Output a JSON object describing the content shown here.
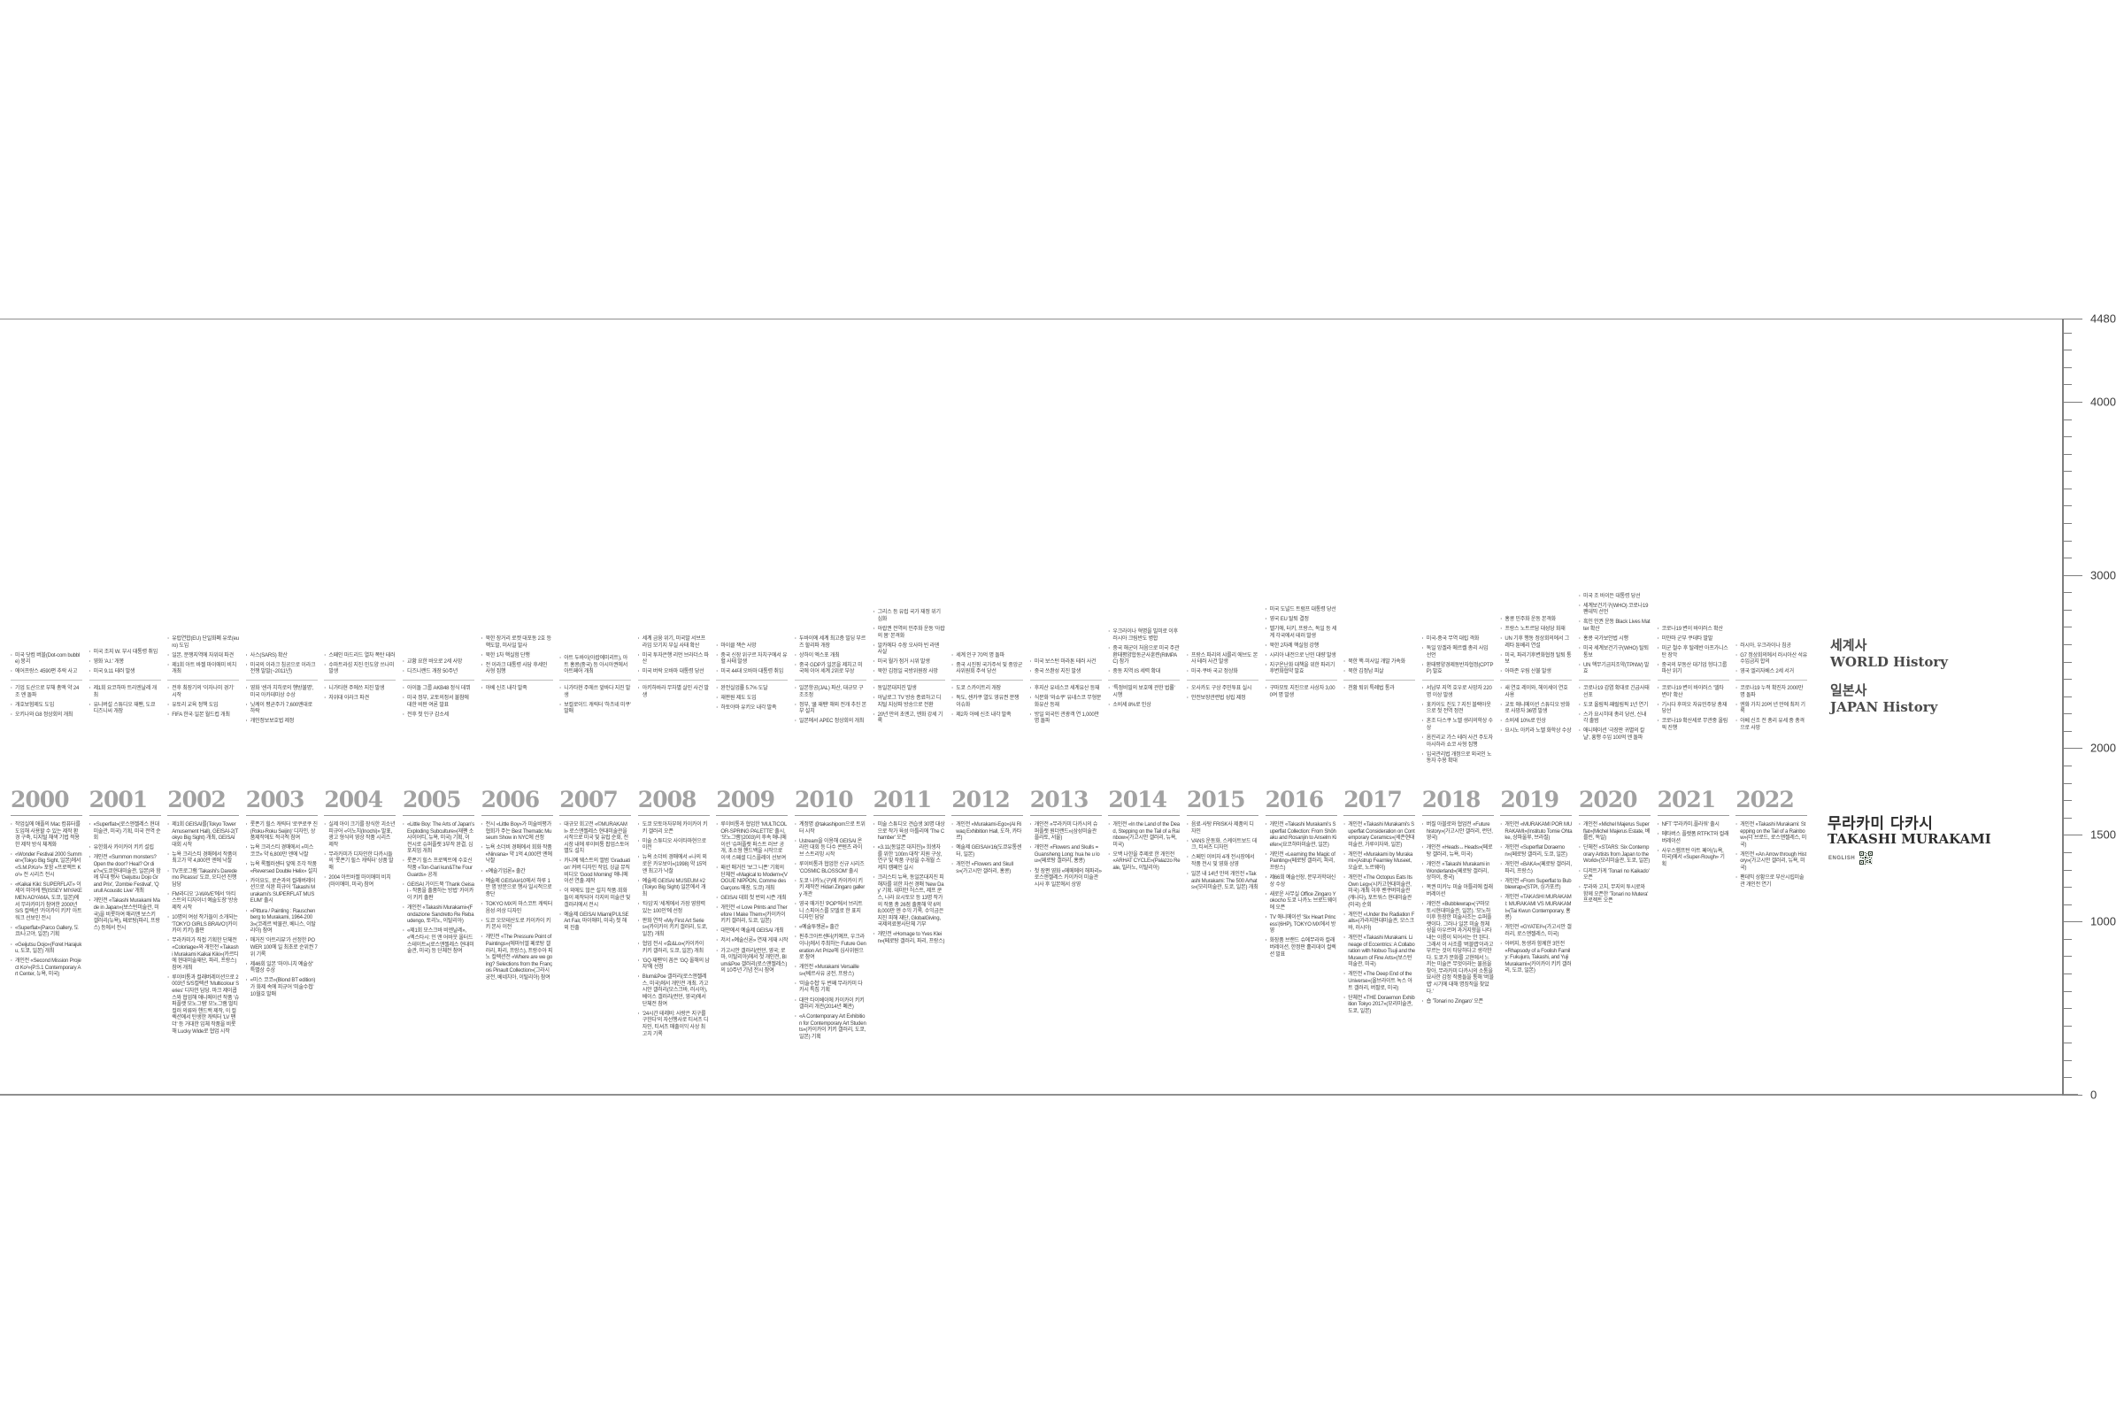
{
  "colors": {
    "background": "#ffffff",
    "text": "#3e3e3e",
    "year_gray": "#a2a2a2",
    "rule_gray": "#bdbdbd",
    "ruler_gray": "#7d7d7d"
  },
  "labels": {
    "world_ko": "세계사",
    "world_en": "WORLD History",
    "japan_ko": "일본사",
    "japan_en": "JAPAN History",
    "title_ko": "무라카미 다카시",
    "title_en": "TAKASHI MURAKAMI",
    "qr_label": "ENGLISH",
    "qr_icon": "qr-code"
  },
  "ruler": {
    "max": 4480,
    "minor_step": 100,
    "labeled_values": [
      4480,
      4000,
      3000,
      2000,
      1500,
      1000,
      0
    ],
    "labels": [
      "4480",
      "4000",
      "3000",
      "2000",
      "1500",
      "1000",
      "0"
    ]
  },
  "years": [
    {
      "year": "2000",
      "world": [
        "미국 닷컴 버블(Dot-com bubble) 붕괴",
        "에어프랑스 4590편 추락 사고"
      ],
      "japan": [
        "기업 도산으로 부채 총액 약 24조 엔 돌파",
        "개호보험제도 도입",
        "오키나와 G8 정상회의 개최"
      ],
      "murakami": [
        "작업실에 애플의 Mac 컴퓨터를 도입해 사용할 수 있는 제작 환경 구축, 디지털 채색 기법 적용한 제작 방식 체계화",
        "«Wonder Festival 2000 Summer»(Tokyo Big Sight, 일본)에서 «S.M.P.Ko²» 포함 «프로젝트 Ko²» 전 시리즈 전시",
        "«Kaikai Kiki: SUPERFLAT» 이세이 미야케 맨(ISSEY MIYAKE MEN AOYAMA, 도쿄, 일본)에서 무라카미가 참여한 2000년 S/S 컬렉션 '카이카이 키키' 아트워크 선보인 전시",
        "«Superflat»(Parco Gallery, 도쿄/나고야, 일본) 기획",
        "«Geijutsu Dojo»(Foret Harajuku, 도쿄, 일본) 개최",
        "개인전 «Second Mission Project Ko²»(P.S.1 Contemporary Art Center, 뉴욕, 미국)"
      ]
    },
    {
      "year": "2001",
      "world": [
        "미국 조지 W. 부시 대통령 취임",
        "영화 'A.I.' 개봉",
        "미국 9.11 테러 발생"
      ],
      "japan": [
        "제1회 요코하마 트리엔날레 개최",
        "유니버설 스튜디오 재팬, 도쿄 디즈니씨 개장"
      ],
      "murakami": [
        "«Superflat»(로스앤젤레스 현대미술관, 미국) 기획, 미국 전역 순회",
        "유한회사 카이카이 키키 설립",
        "개인전 «Summon monsters? Open the door? Heal? Or die?»(도쿄현대미술관, 일본)와 함께 부대 행사 'Geijutsu Dojo Grand Prix', 'Zombie Festival', 'Qurull Acoustic Live' 개최",
        "개인전 «Takashi Murakami Made in Japan»(보스턴미술관, 미국)을 비롯하여 매리앤 보스키 갤러리(뉴욕), 페로탕(파리, 프랑스) 등에서 전시"
      ]
    },
    {
      "year": "2002",
      "world": [
        "유럽연합(EU) 단일화폐 유로(euro) 도입",
        "일본, 분쟁지역에 자위대 파견",
        "제1회 아트 바젤 마이애미 비치 개최"
      ],
      "japan": [
        "전후 최장기의 '이자나미 경기' 시작",
        "유토리 교육 정책 도입",
        "FIFA 한국·일본 월드컵 개최"
      ],
      "murakami": [
        "제1회 GEISAI를(Tokyo Tower Amusement Hall), GEISAI-2(Tokyo Big Sight) 개최, GEISAI 대회 시작",
        "뉴욕 크리스티 경매에서 작품이 최고가 약 4,800만 엔에 낙찰",
        "TV프로그램 'Takashi's Daredemo Picasso' 도쿄, 오디션 진행 담당",
        "FM라디오 'J-WAVE'에서 '아티스트의 디자이너 예술도장' 방송 제작 시작",
        "10명의 여성 작가들이 소개되는 'TOKYO GIRLS BRAVO'(카이카이 키키) 출판",
        "무라카미가 직접 기획한 단체전 «Coloriage»와 개인전 «Takashi Murakami Kaikai Kiki»(카르티에 현대미술재단, 파리, 프랑스) 참여·개최",
        "루이비통과 컬래버레이션으로 2003년 S/S컬렉션 'Multicolour Series' 디자인 담당. 마크 제이콥스와 협업해 애니메이션 작품 '슈퍼플랫 모노그램' 모노그램 멀티컬러 의류와 핸드백 제작, 이 컬렉션에서 탄생한 캐릭터 'LV 팬더' 등 거대한 입체 작품을 비롯해 Lucky Wide로 협업 시작"
      ]
    },
    {
      "year": "2003",
      "world": [
        "사스(SARS) 확산",
        "미국의 이라크 침공으로 이라크 전쟁 발발(~2011년)"
      ],
      "japan": [
        "영화 '센과 치히로의 행방불명', 미국 아카데미상 수상",
        "닛케이 평균주가 7,600엔대로 하락",
        "개인정보보호법 제정"
      ],
      "murakami": [
        "롯폰기 힐스 캐릭터 '로쿠로쿠 진(Roku-Roku Seijin)' 디자인, 상품제작에도 적극적 참여",
        "뉴욕 크리스티 경매에서 «미스 코코» 약 6,800만 엔에 낙찰",
        "뉴욕 록펠러센터 앞에 조각 작품 «Reversed Double Helix» 설치",
        "카이요도, 로손과의 컬래버레이션으로 식완 피규어 'Takashi Murakami's SUPERFLAT MUSEUM' 출시",
        "«Pittura / Painting : Rauschenberg to Murakami, 1964-2003»(코레르 박물관, 베니스, 이탈리아) 참여",
        "매거진 '아트리뷰'가 선정한 POWER 100에 일 최초로 순위권 7위 기록",
        "제46회 일본 '마이니치 예술상' 특별상 수상",
        "«미스 코코»(Blond BT edition)가 화제 속에 피규어 '미술수첩' 10월호 발매"
      ]
    },
    {
      "year": "2004",
      "world": [
        "스페인 마드리드 열차 폭탄 테러",
        "수마트라섬 지진·인도양 쓰나미 발생"
      ],
      "japan": [
        "니가타현 주에쓰 지진 발생",
        "자위대 이라크 파견"
      ],
      "murakami": [
        "실제 아이 크기를 장식한 괴소년 피규어 «이노치(Inochi)» 발표, 광고 형식의 영상 작품 시리즈 제작",
        "무라카미가 디자인한 다카시들의 '롯폰기 힐스 캐릭터' 상품 발매",
        "2004 아트바젤 마이애미 비치(마이애미, 미국) 참여"
      ]
    },
    {
      "year": "2005",
      "world": [
        "교황 요한 바오로 2세 사망",
        "디즈니랜드 개장 50주년"
      ],
      "japan": [
        "아이돌 그룹 AKB48 정식 데뷔",
        "미국 정부, 교토의정서 불참에 대한 비판 여론 발표",
        "전후 첫 인구 감소세"
      ],
      "murakami": [
        "«Little Boy: The Arts of Japan's Exploding Subculture»(재팬 소사이어티, 뉴욕, 미국) 기획, 이 전시로 슈퍼플랫 3부작 완결, 심포지엄 개최",
        "롯폰기 힐스 프로젝트에 수호신 작품 «Ton-Gari kun&The Four Guards» 공개",
        "GEISAI 가이드북 'Thank Geisai - 작품을 출품하는 방법' 카이카이 키키 출판",
        "개인전 «Takashi Murakami»(Fondazione Sandretto Re Rebaudengo, 토리노, 이탈리아)",
        "«제1회 모스크바 비엔날레», «엑스타시: 인 앤 어바웃 올터드 스테이트»(로스앤젤레스 현대미술관, 미국) 등 단체전 참여"
      ]
    },
    {
      "year": "2006",
      "world": [
        "북한 장거리 로켓 대포동 2호 등 핵도발, 미사일 발사",
        "북한 1차 핵실험 단행",
        "전 이라크 대통령 사담 후세인 사형 집행"
      ],
      "japan": [
        "아베 신조 내각 발족"
      ],
      "murakami": [
        "전시 «Little Boy»가 미술비평가협회가 주는 Best Thematic Museum Show in NYC에 선정",
        "뉴욕 소더비 경매에서 회화 작품 «Nirvana» 약 1억 4,000만 엔에 낙찰",
        "«예술기업론» 출간",
        "예술제 GEISAI#10에서 하루 1만 명 방문으로 행사 일시적으로 중단",
        "TOKYO MX의 마스코트 캐릭터 음성·의상 디자인",
        "도쿄 오모테산도로 카이카이 키키 본사 이전",
        "개인전 «The Pressure Point of Paintings»(에마뉘엘 페로탕 갤러리, 파리, 프랑스), 프랑수아 피노 컬렉션전 «Where are we going? Selections from the François Pinault Collection»(그라시 궁전, 베네치아, 이탈리아) 참여"
      ]
    },
    {
      "year": "2007",
      "world": [
        "아트 두바이(아랍에미리트), 아트 홍콩(중국) 등 아시아권에서 아트페어 개최"
      ],
      "japan": [
        "니가타현 주에쓰 앞바다 지진 발생",
        "보컬로이드 캐릭터 '하츠네 미쿠' 발매"
      ],
      "murakami": [
        "대규모 회고전 «©MURAKAMI» 로스앤젤레스 현대미술관을 시작으로 미국 및 유럽 순회, 전시장 내에 루이비통 팝업스토어 별도 설치",
        "카니예 웨스트의 앨범 'Graduation' 커버 디자인 작업, 싱글 뮤직비디오 'Good Morning' 애니메이션 연출·제작",
        "이 외에도 많은 설치 작품·회화들이 제작되어 각지의 미술관 및 갤러리에서 전시",
        "예술제 GEISAI Miami(PULSE Art Fair, 마이애미, 미국) 첫 해외 진출"
      ]
    },
    {
      "year": "2008",
      "world": [
        "세계 금융 위기, 미국발 서브프라임 모기지 부실 사태 확산",
        "미국 투자은행 리먼 브라더스 파산",
        "미국 버락 오바마 대통령 당선"
      ],
      "japan": [
        "아키하바라 무차별 살인 사건 발생"
      ],
      "murakami": [
        "도쿄 모토아자부에 카이카이 키키 갤러리 오픈",
        "미술 스튜디오 사이타마현으로 이전",
        "뉴욕 소더비 경매에서 «나의 외로운 카우보이»(1998) 약 15억 엔 최고가 낙찰",
        "예술제 GEISAI MUSEUM #2(Tokyo Big Sight) 일본에서 개최",
        "'타임'지 '세계에서 가장 영향력 있는 100인'에 선정",
        "판화 연작 «My First Art Series»(카이카이 키키 갤러리, 도쿄, 일본) 개최",
        "협업 전시 «会&Lo»(카이카이 키키 갤러리, 도쿄, 일본) 개최",
        "'GQ 재팬'이 꼽은 'GQ 올해의 남자'에 선정",
        "Blum&Poe 갤러리(로스앤젤레스, 미국)에서 개인전 개최. 가고시안 갤러리(모스크바, 러시아), 베이스 갤러리(런던, 영국)에서 단체전 참여",
        "'24시간 테레비: 사랑은 지구를 구한다'의 자선행사로 티셔츠 디자인, 티셔츠 매출이익 사상 최고치 기록"
      ]
    },
    {
      "year": "2009",
      "world": [
        "마이클 잭슨 사망",
        "중국 신장 위구르 자치구에서 유혈 사태 발생",
        "미국 44대 오바마 대통령 취임"
      ],
      "japan": [
        "완전실업률 5.7% 도달",
        "재판원 제도 도입",
        "하토야마 유키오 내각 발족"
      ],
      "murakami": [
        "루이비통과 협업한 'MULTICOLOR-SPRING PALETTE' 출시, '모노그램'(2003)의 후속 애니메이션 '슈퍼플랫 퍼스트 러브' 공개, 초소형 핸드백을 시작으로 이색 스페셜 디스플레이 선보여",
        "패션 매거진 '보그 니폰' 기획의 단체전 «Magical to Modern»(VOGUE NIPPON, Comme des Garçons 매장, 도쿄) 개최",
        "GEISAI 대회 첫 번외 시즌 개최",
        "개인전 «I Love Prints and Therefore I Make Them»(카이카이 키키 갤러리, 도쿄, 일본)",
        "대만에서 예술제 GEISAI 개최",
        "저서 «예술신론» 연재 게재 시작",
        "가고시안 갤러리(런던, 영국; 로마, 이탈리아)에서 첫 개인전, Blum&Poe 갤러리(로스앤젤레스)의 10주년 기념 전시 참여"
      ]
    },
    {
      "year": "2010",
      "world": [
        "두바이에 세계 최고층 빌딩 부르즈 할리파 개장",
        "상하이 엑스포 개최",
        "중국 GDP가 일본을 제치고 미국에 이어 세계 2위로 부상"
      ],
      "japan": [
        "일본항공(JAL) 파산, 대규모 구조조정",
        "정부, '쿨 재팬' 해외 전개 추진 본부 설치",
        "일본에서 APEC 정상회의 개최"
      ],
      "murakami": [
        "계정명 @takashipom으로 트위터 시작",
        "Ustream을 이용해 GEISAI 온라인 대회 등 다수 콘텐츠 라이브 스트리밍 시작",
        "루이비통과 협업한 신규 시리즈 'COSMIC BLOSSOM' 출시",
        "도쿄 나카노(구)에 카이카이 키키 제작전 Hidari Zingaro gallery 개관",
        "영국 매거진 'POP'에서 브리트니 스피어스를 모델로 한 표지 디자인 담당",
        "«예술투쟁론» 출간",
        "핀추크아트센터(키예프, 우크라이나)에서 주최하는 Future Generation Art Prize에 심사위원으로 참여",
        "개인전 «Murakami Versailles»(베르사유 궁전, 프랑스)",
        "'미술수첩' 두 번째 무라카미 다카시 특집 기획",
        "대만 타이베이에 카이카이 키키 갤러리 개관(2014년 폐관)",
        "«A Contemporary Art Exhibition for Contemporary Art Students»(카이카이 키키 갤러리, 도쿄, 일본) 기획"
      ]
    },
    {
      "year": "2011",
      "world": [
        "그리스 등 유럽 국가 재정 위기 심화",
        "아랍권 전역의 민주화 운동 '아랍의 봄' 본격화",
        "알카에다 수장 오사마 빈 라덴 사살",
        "미국 월가 점거 시위 발생",
        "북한 김정일 국방위원장 사망"
      ],
      "japan": [
        "동일본대지진 발생",
        "아날로그 TV 방송 종료하고 디지털 지상파 방송으로 전환",
        "20년 만의 초엔고, 엔화 강세 기록"
      ],
      "murakami": [
        "미술 스튜디오 견습생 30명 대상으로 작가 육성 아틀리에 'The Chamber' 오픈",
        "«3.11(동일본 대지진)» 희생자를 위한 '100m 대작' 지원 구상, 연구 및 작품 구성을 수개월 스케치 캠페인 실시",
        "크리스티 뉴욕, 동일본대지진 피해자를 위한 자선 경매 'New Day' 기획. 데미안 허스트, 제프 쿤스, 나라 요시토모 등 13명 작가의 작품 총 26점 출품해 약 6억 8,000만 엔 수익 기록. 수익금은 지진 피해 재단, GlobalGiving, 국제의료봉사단체 기부",
        "개인전 «Homage to Yves Klein»(페로탕 갤러리, 파리, 프랑스)"
      ]
    },
    {
      "year": "2012",
      "world": [
        "세계 인구 70억 명 돌파",
        "중국 시진핑 국가주석 및 중앙군사위원회 주석 당선"
      ],
      "japan": [
        "도쿄 스카이트리 개장",
        "독도, 센카쿠 열도 영유권 분쟁 이슈화",
        "제2차 아베 신조 내각 발족"
      ],
      "murakami": [
        "개인전 «Murakami-Ego»(Al Riwaq Exhibition Hall, 도하, 카타르)",
        "예술제 GEISAI#16(도쿄유통센터, 일본)",
        "개인전 «Flowers and Skulls»(가고시안 갤러리, 홍콩)"
      ]
    },
    {
      "year": "2013",
      "world": [
        "미국 보스턴 마라톤 테러 사건",
        "중국 쓰촨성 지진 발생"
      ],
      "japan": [
        "후지산 유네스코 세계유산 등재",
        "식문화 '와쇼쿠' 유네스코 무형문화유산 등재",
        "방일 외국인 관광객 연 1,000만 명 돌파"
      ],
      "murakami": [
        "개인전 «무라카미 다카시의 슈퍼플랫 원더랜드»(삼성미술관 플라토, 서울)",
        "개인전 «Flowers and Skulls = Guansheng Long: hua he u lou»(페로탕 갤러리, 홍콩)",
        "첫 장편 영화 «메메메의 해파리» 로스앤젤레스 카이카이 미술관 시사 후 일본에서 상영"
      ]
    },
    {
      "year": "2014",
      "world": [
        "우크라이나 혁명을 빌미로 이후 러시아 크림반도 병합",
        "중국 해군이 처음으로 미국 주관 환태평양합동군사훈련(RIMPAC) 참가",
        "중동 지역 IS 세력 확대"
      ],
      "japan": [
        "'특정비밀의 보호에 관한 법률' 시행",
        "소비세 8%로 인상"
      ],
      "murakami": [
        "개인전 «In the Land of the Dead, Stepping on the Tail of a Rainbow»(가고시안 갤러리, 뉴욕, 미국)",
        "오백 나한을 주제로 한 개인전 «ARHAT CYCLE»(Palazzo Reale, 밀라노, 이탈리아)"
      ]
    },
    {
      "year": "2015",
      "world": [
        "프랑스 파리의 샤를리 에브도 본사 테러 사건 발생",
        "미국·쿠바 국교 정상화"
      ],
      "japan": [
        "오사카도 구상 주민투표 실시",
        "안전보장관련법 성립 제정"
      ],
      "murakami": [
        "음료·사탕 FRISK사 제품의 디자인",
        "VANS 운동화, 스케이트보드 데크, 티셔츠 디자인",
        "스페인 이비자 4개 전시장에서 작품 전시 및 영화 상영",
        "일본 내 14년 만의 개인전 «Takashi Murakami: The 500 Arhats»(모리미술관, 도쿄, 일본) 개최"
      ]
    },
    {
      "year": "2016",
      "world": [
        "미국 도널드 트럼프 대통령 당선",
        "영국 EU 탈퇴 결정",
        "벨기에, 터키, 프랑스, 독일 등 세계 각국에서 테러 발생",
        "북한 2차례 핵실험 강행",
        "시리아 내전으로 난민 대량 발생",
        "지구온난화 대책을 위한 파리기후변화협약 발효"
      ],
      "japan": [
        "구마모토 지진으로 사상자 3,000여 명 발생"
      ],
      "murakami": [
        "개인전 «Takashi Murakami's Superflat Collection: From Shōhaku and Rosanjin to Anselm Kiefer»(요코하마미술관, 일본)",
        "개인전 «Learning the Magic of Painting»(페로탕 갤러리, 파리, 프랑스)",
        "제66회 예술선장, 문부과학대신상 수상",
        "새로운 사무실 Office Zingaro Yokocho 도쿄 나카노 브로드웨이에 오픈",
        "TV 애니메이션 'Six Heart Princess'(6HP), TOKYO MX에서 방영",
        "화장품 브랜드 슈에무라와 컬래버레이션, 한정판 홀리데이 컬렉션 발표"
      ]
    },
    {
      "year": "2017",
      "world": [
        "북한 핵·미사일 개발 가속화",
        "북한 김정남 피살"
      ],
      "japan": [
        "천황 퇴위 특례법 통과"
      ],
      "murakami": [
        "개인전 «Takashi Murakami's Superflat Consideration on Contemporary Ceramics»(세존현대미술관, 가루이자와, 일본)",
        "개인전 «Murakami by Murakami»(Astrup Fearnley Museet, 오슬로, 노르웨이)",
        "개인전 «The Octopus Eats Its Own Leg»(시카고현대미술관, 미국) 개최 이후 밴쿠버미술관(캐나다), 포트워스 현대미술관(미국) 순회",
        "개인전 «Under the Radiation Falls»(가라지현대미술관, 모스크바, 러시아)",
        "개인전 «Takashi Murakami. Lineage of Eccentrics: A Collaboration with Nobuo Tsuji and the Museum of Fine Arts»(보스턴미술관, 미국)",
        "개인전 «The Deep End of the Universe»(올브라이트 녹스 아트 갤러리, 버팔로, 미국)",
        "단체전 «THE Doraemon Exhibition Tokyo 2017»(모리미술관, 도쿄, 일본)"
      ]
    },
    {
      "year": "2018",
      "world": [
        "미국-중국 무역 대립 격화",
        "독일 앙겔라 메르켈 총리 사임 선언",
        "환태평양경제동반자협정(CPTPP) 발효"
      ],
      "japan": [
        "서남부 지역 호우로 사망자 220명 이상 발생",
        "홋카이도 진도 7 지진 블랙아웃으로 첫 전역 정전",
        "혼조 다스쿠 노벨 생리의학상 수상",
        "옴진리교 가스 테러 사건 주도자 아사하라 쇼코 사형 집행",
        "입국관리법 개정으로 외국인 노동자 수용 확대"
      ],
      "murakami": [
        "버질 아블로와 협업전 «Future history»(가고시안 갤러리, 런던, 영국)",
        "개인전 «Heads↔Heads»(페로탕 갤러리, 뉴욕, 미국)",
        "개인전 «Takashi Murakami in Wonderland»(페로탕 갤러리, 상하이, 중국)",
        "복권 미카누 미술 아틀리에 컬래버레이션",
        "개인전 «Bubblewrap»(구마모토시현대미술관, 일본). '모노하 이후 등장한 미술사조는 슈퍼플랫이다. 그러나 일본 미술 정체성을 아우르며 과거지향을 나타내는 이름이 되어서는 안 된다. 그래서 이 사조를 '버블랩'이라고 부르는 것이 타당하다고 생각한다. 도쿄가 문화를 고현에서 느끼는 미술은 무엇이라는 물음을 찾아, 무라카미 다카시의 소통을 묘사한 감정 작품들을 통해 '버블랩' 시기에 대해 명징작을 찾았다.'",
        "숍 'Tonari no Zingaro' 오픈"
      ]
    },
    {
      "year": "2019",
      "world": [
        "홍콩 민주화 운동 본격화",
        "프랑스 노트르담 대성당 화재",
        "UN 기후 행동 정상회의에서 그레타 툰베리 연설",
        "미국, 파리기후변화협정 탈퇴 통보",
        "아마존 우림 산불 발생"
      ],
      "japan": [
        "새 연호 레이와, 헤이세이 연호 사용",
        "교토 애니메이션 스튜디오 방화로 사망자 36명 발생",
        "소비세 10%로 인상",
        "요시노 아키라 노벨 화학상 수상"
      ],
      "murakami": [
        "개인전 «MURAKAMI POR MURAKAMI»(Instituto Tomie Ohtake, 상파울루, 브라질)",
        "개인전 «Superflat Doraemon»(페로탕 갤러리, 도쿄, 일본)",
        "개인전 «BAKA»(페로탕 갤러리, 파리, 프랑스)",
        "개인전 «From Superflat to Bubblewrap»(STPI, 싱가포르)",
        "개인전 «TAKASHI MURAKAMI: MURAKAMI VS MURAKAMI»(Tai Kwun Contemporary, 홍콩)",
        "개인전 «GYATEI²»(가고시안 갤러리, 로스앤젤레스, 미국)",
        "아버지, 동생과 함께한 3인전 «Rhapsody of a Foolish Family: Fukujuro, Takashi, and Yuji Murakami»(카이카이 키키 갤러리, 도쿄, 일본)"
      ]
    },
    {
      "year": "2020",
      "world": [
        "미국 조 바이든 대통령 당선",
        "세계보건기구(WHO) 코로나19 팬데믹 선언",
        "흑인 인권 운동 Black Lives Matter 확산",
        "홍콩 국가보안법 시행",
        "미국 세계보건기구(WHO) 탈퇴 통보",
        "UN 핵무기금지조약(TPNW) 발효"
      ],
      "japan": [
        "코로나19 감염 확대로 긴급사태 선포",
        "도쿄 올림픽·패럴림픽 1년 연기",
        "스가 요시히데 총리 당선, 신내각 출범",
        "애니메이션 '극장판 귀멸의 칼날', 흥행 수입 100억 엔 돌파"
      ],
      "murakami": [
        "개인전 «Michel Majerus Superflat»(Michel Majerus Estate, 베를린, 독일)",
        "단체전 «STARS: Six Contemporary Artists from Japan to the World»(모리미술관, 도쿄, 일본)",
        "디저트가게 'Tonari no Kaikado' 오픈",
        "무라와 고지, 무지의 투시로와 함께 오픈한 'Tonari no Mutera' 프로젝트 오픈"
      ]
    },
    {
      "year": "2021",
      "world": [
        "코로나19 변이 바이러스 확산",
        "미얀마 군부 쿠데타 발발",
        "미군 철수 후 탈레반 아프가니스탄 장악",
        "중국의 부동산 대기업 헝다그룹 파산 위기"
      ],
      "japan": [
        "코로나19 변이 바이러스 '델타 변이' 확산",
        "기시다 후미오 자유민주당 총재 당선",
        "코로나19 확산세로 무관중 올림픽 진행"
      ],
      "murakami": [
        "NFT '무라카미.플라워' 출시",
        "메타버스 플랫폼 RTFKT와 컬래버레이션",
        "사우스햄프턴 아트 페어(뉴욕, 미국)에서 «Super-Rough» 기획"
      ]
    },
    {
      "year": "2022",
      "world": [
        "러시아, 우크라이나 침공",
        "G7 정상회의에서 러시아산 석유 수입금지 합의",
        "영국 엘리자베스 2세 서거"
      ],
      "japan": [
        "코로나19 누적 확진자 2000만 명 돌파",
        "엔화 가치 20여 년 만에 최저 기록",
        "아베 신조 전 총리 유세 중 총격으로 사망"
      ],
      "murakami": [
        "개인전 «Takashi Murakami: Stepping on the Tail of a Rainbow»(더 브로드, 로스앤젤레스, 미국)",
        "개인전 «An Arrow through History»(가고시안 갤러리, 뉴욕, 미국)",
        "팬데믹 상황으로 부산시립미술관 개인전 연기"
      ]
    }
  ]
}
